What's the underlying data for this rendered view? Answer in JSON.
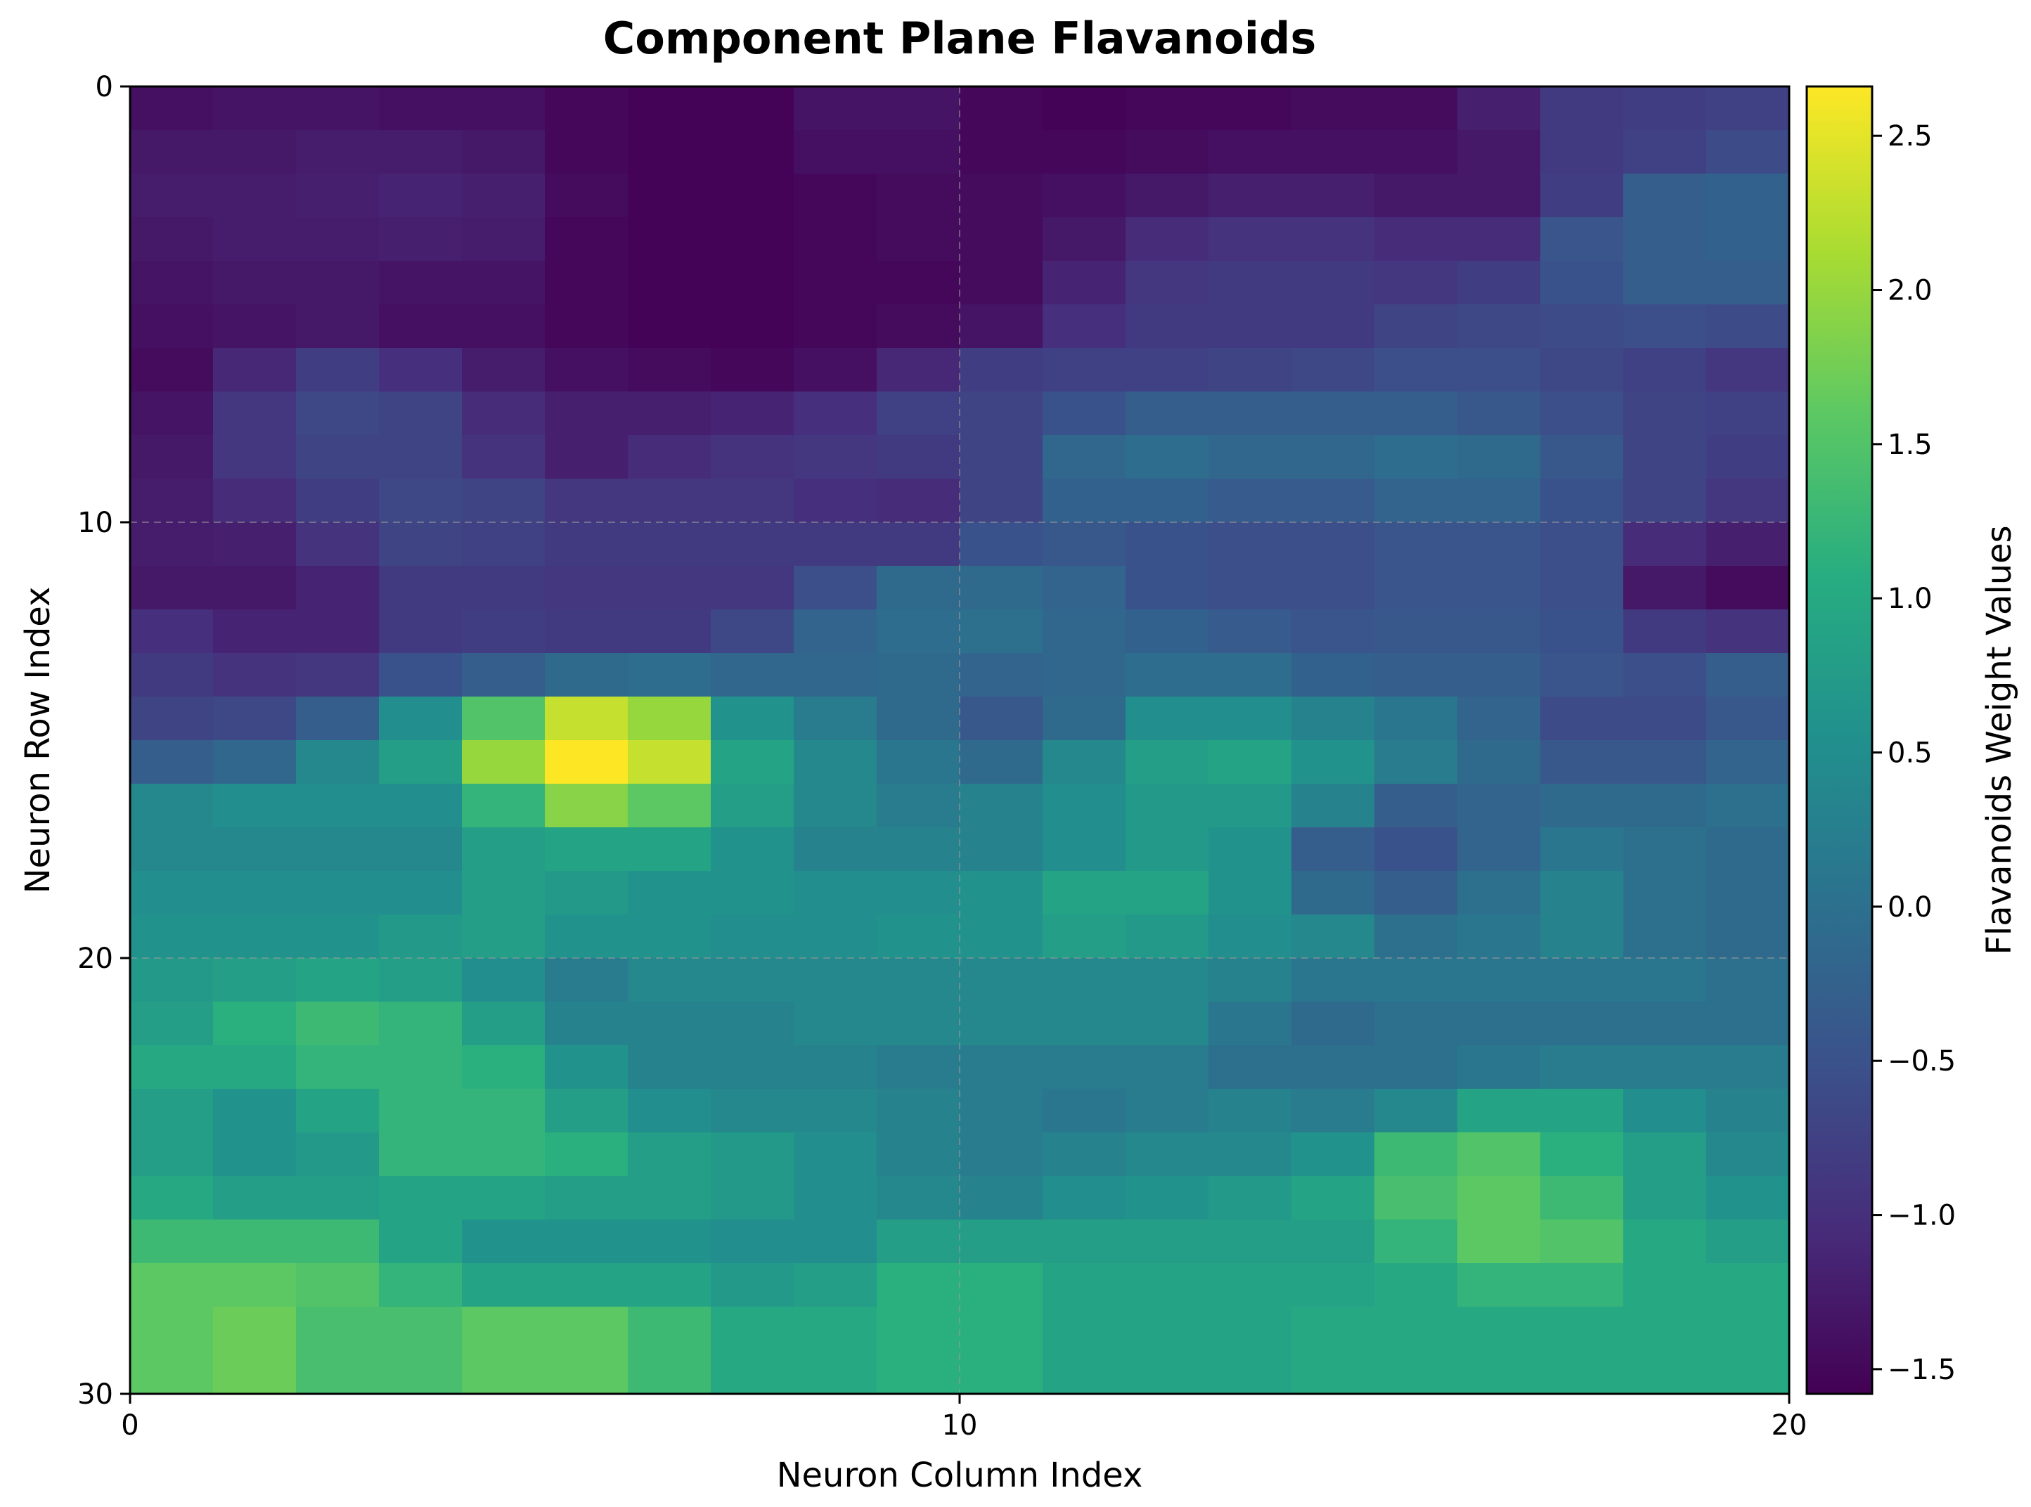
{
  "chart_data": {
    "type": "heatmap",
    "title": "Component Plane Flavanoids",
    "xlabel": "Neuron Column Index",
    "ylabel": "Neuron Row Index",
    "colorbar_label": "Flavanoids Weight Values",
    "colormap": "viridis",
    "xlim": [
      0,
      20
    ],
    "ylim": [
      30,
      0
    ],
    "xticks": [
      "0",
      "10",
      "20"
    ],
    "yticks": [
      "0",
      "10",
      "20",
      "30"
    ],
    "color_range": [
      -1.58,
      2.66
    ],
    "colorbar_ticks": [
      "2.5",
      "2.0",
      "1.5",
      "1.0",
      "0.5",
      "0.0",
      "−0.5",
      "−1.0",
      "−1.5"
    ],
    "colorbar_tick_values": [
      2.5,
      2.0,
      1.5,
      1.0,
      0.5,
      0.0,
      -0.5,
      -1.0,
      -1.5
    ],
    "grid": true,
    "rows": 30,
    "cols": 20,
    "values": [
      [
        -1.4,
        -1.35,
        -1.35,
        -1.4,
        -1.4,
        -1.5,
        -1.55,
        -1.55,
        -1.35,
        -1.35,
        -1.5,
        -1.55,
        -1.5,
        -1.5,
        -1.45,
        -1.45,
        -1.2,
        -0.85,
        -0.8,
        -0.75
      ],
      [
        -1.3,
        -1.3,
        -1.25,
        -1.25,
        -1.3,
        -1.5,
        -1.55,
        -1.55,
        -1.4,
        -1.4,
        -1.5,
        -1.5,
        -1.45,
        -1.4,
        -1.4,
        -1.4,
        -1.3,
        -0.85,
        -0.75,
        -0.6
      ],
      [
        -1.25,
        -1.25,
        -1.2,
        -1.15,
        -1.2,
        -1.45,
        -1.55,
        -1.55,
        -1.5,
        -1.45,
        -1.45,
        -1.4,
        -1.3,
        -1.2,
        -1.2,
        -1.3,
        -1.3,
        -0.8,
        -0.3,
        -0.25
      ],
      [
        -1.3,
        -1.25,
        -1.25,
        -1.2,
        -1.25,
        -1.5,
        -1.55,
        -1.55,
        -1.5,
        -1.45,
        -1.45,
        -1.3,
        -1.05,
        -0.95,
        -0.95,
        -1.05,
        -1.05,
        -0.45,
        -0.3,
        -0.25
      ],
      [
        -1.35,
        -1.3,
        -1.3,
        -1.35,
        -1.35,
        -1.5,
        -1.55,
        -1.55,
        -1.5,
        -1.5,
        -1.45,
        -1.15,
        -0.9,
        -0.85,
        -0.85,
        -0.9,
        -0.8,
        -0.5,
        -0.3,
        -0.3
      ],
      [
        -1.4,
        -1.35,
        -1.3,
        -1.4,
        -1.4,
        -1.5,
        -1.55,
        -1.55,
        -1.5,
        -1.45,
        -1.35,
        -1.0,
        -0.85,
        -0.85,
        -0.85,
        -0.7,
        -0.65,
        -0.6,
        -0.55,
        -0.6
      ],
      [
        -1.45,
        -1.1,
        -0.8,
        -1.0,
        -1.25,
        -1.4,
        -1.45,
        -1.5,
        -1.4,
        -1.1,
        -0.8,
        -0.75,
        -0.75,
        -0.7,
        -0.65,
        -0.55,
        -0.55,
        -0.65,
        -0.75,
        -0.9
      ],
      [
        -1.35,
        -0.9,
        -0.65,
        -0.7,
        -1.05,
        -1.2,
        -1.2,
        -1.15,
        -1.0,
        -0.75,
        -0.7,
        -0.5,
        -0.3,
        -0.3,
        -0.3,
        -0.3,
        -0.4,
        -0.55,
        -0.7,
        -0.75
      ],
      [
        -1.3,
        -0.9,
        -0.7,
        -0.7,
        -0.95,
        -1.2,
        -1.05,
        -0.95,
        -0.9,
        -0.85,
        -0.7,
        -0.15,
        -0.05,
        -0.15,
        -0.15,
        -0.05,
        -0.1,
        -0.4,
        -0.7,
        -0.8
      ],
      [
        -1.25,
        -1.05,
        -0.8,
        -0.65,
        -0.7,
        -0.9,
        -0.9,
        -0.9,
        -1.0,
        -1.05,
        -0.7,
        -0.25,
        -0.25,
        -0.35,
        -0.35,
        -0.2,
        -0.2,
        -0.5,
        -0.7,
        -0.9
      ],
      [
        -1.25,
        -1.2,
        -0.95,
        -0.7,
        -0.75,
        -0.85,
        -0.85,
        -0.85,
        -0.85,
        -0.85,
        -0.5,
        -0.4,
        -0.5,
        -0.55,
        -0.55,
        -0.45,
        -0.45,
        -0.55,
        -1.05,
        -1.2
      ],
      [
        -1.3,
        -1.3,
        -1.15,
        -0.85,
        -0.85,
        -0.9,
        -0.9,
        -0.9,
        -0.55,
        -0.1,
        -0.1,
        -0.2,
        -0.5,
        -0.55,
        -0.55,
        -0.45,
        -0.45,
        -0.55,
        -1.3,
        -1.45
      ],
      [
        -1.0,
        -1.15,
        -1.15,
        -0.85,
        -0.8,
        -0.85,
        -0.85,
        -0.65,
        -0.2,
        -0.05,
        0.0,
        -0.15,
        -0.25,
        -0.35,
        -0.45,
        -0.4,
        -0.4,
        -0.5,
        -0.85,
        -0.95
      ],
      [
        -0.85,
        -0.95,
        -0.9,
        -0.5,
        -0.3,
        -0.1,
        -0.05,
        -0.15,
        -0.15,
        -0.1,
        -0.2,
        -0.15,
        -0.05,
        -0.05,
        -0.25,
        -0.3,
        -0.3,
        -0.45,
        -0.55,
        -0.3
      ],
      [
        -0.7,
        -0.65,
        -0.3,
        0.5,
        1.5,
        2.3,
        2.0,
        0.6,
        0.2,
        -0.1,
        -0.4,
        -0.1,
        0.5,
        0.5,
        0.3,
        0.1,
        -0.2,
        -0.6,
        -0.6,
        -0.4
      ],
      [
        -0.3,
        -0.15,
        0.4,
        0.8,
        2.0,
        2.66,
        2.3,
        0.9,
        0.4,
        0.1,
        -0.1,
        0.4,
        0.8,
        0.9,
        0.6,
        0.2,
        -0.1,
        -0.4,
        -0.4,
        -0.2
      ],
      [
        0.4,
        0.5,
        0.5,
        0.5,
        1.2,
        1.9,
        1.6,
        0.8,
        0.4,
        0.2,
        0.3,
        0.5,
        0.7,
        0.7,
        0.3,
        -0.3,
        -0.2,
        -0.1,
        -0.1,
        0.0
      ],
      [
        0.4,
        0.4,
        0.4,
        0.4,
        0.8,
        0.9,
        0.9,
        0.6,
        0.3,
        0.3,
        0.3,
        0.5,
        0.7,
        0.6,
        -0.3,
        -0.5,
        -0.2,
        0.1,
        0.0,
        -0.1
      ],
      [
        0.5,
        0.5,
        0.5,
        0.5,
        0.8,
        0.7,
        0.6,
        0.6,
        0.5,
        0.5,
        0.6,
        0.9,
        0.9,
        0.6,
        -0.1,
        -0.3,
        0.0,
        0.3,
        0.0,
        -0.1
      ],
      [
        0.6,
        0.6,
        0.6,
        0.7,
        0.8,
        0.6,
        0.6,
        0.5,
        0.5,
        0.6,
        0.6,
        0.8,
        0.7,
        0.5,
        0.4,
        0.0,
        0.1,
        0.3,
        0.0,
        -0.1
      ],
      [
        0.7,
        0.8,
        0.9,
        0.8,
        0.5,
        0.2,
        0.4,
        0.4,
        0.4,
        0.4,
        0.4,
        0.4,
        0.4,
        0.3,
        0.1,
        0.1,
        0.1,
        0.1,
        0.1,
        0.0
      ],
      [
        0.8,
        1.1,
        1.3,
        1.2,
        0.8,
        0.3,
        0.3,
        0.3,
        0.4,
        0.4,
        0.4,
        0.4,
        0.4,
        0.1,
        -0.1,
        0.0,
        0.0,
        0.0,
        0.0,
        0.0
      ],
      [
        1.0,
        1.0,
        1.2,
        1.2,
        1.1,
        0.6,
        0.3,
        0.3,
        0.3,
        0.2,
        0.2,
        0.2,
        0.2,
        0.0,
        0.0,
        0.0,
        0.1,
        0.2,
        0.2,
        0.2
      ],
      [
        0.8,
        0.6,
        0.9,
        1.2,
        1.2,
        0.8,
        0.5,
        0.4,
        0.4,
        0.3,
        0.2,
        0.1,
        0.2,
        0.3,
        0.2,
        0.4,
        0.9,
        0.9,
        0.5,
        0.3
      ],
      [
        0.8,
        0.6,
        0.7,
        1.2,
        1.2,
        1.1,
        0.8,
        0.7,
        0.5,
        0.3,
        0.2,
        0.3,
        0.4,
        0.4,
        0.6,
        1.3,
        1.5,
        1.1,
        0.8,
        0.4
      ],
      [
        1.0,
        0.8,
        0.8,
        0.9,
        0.9,
        0.8,
        0.8,
        0.7,
        0.5,
        0.4,
        0.3,
        0.5,
        0.6,
        0.7,
        0.9,
        1.4,
        1.6,
        1.3,
        0.8,
        0.6
      ],
      [
        1.3,
        1.3,
        1.3,
        0.9,
        0.6,
        0.6,
        0.6,
        0.5,
        0.5,
        0.8,
        0.8,
        0.8,
        0.8,
        0.8,
        0.8,
        1.2,
        1.6,
        1.5,
        1.0,
        0.8
      ],
      [
        1.6,
        1.6,
        1.5,
        1.2,
        0.9,
        0.9,
        0.9,
        0.7,
        0.8,
        1.1,
        1.1,
        0.9,
        0.9,
        0.9,
        0.9,
        1.0,
        1.2,
        1.2,
        1.0,
        1.0
      ],
      [
        1.6,
        1.7,
        1.4,
        1.4,
        1.6,
        1.6,
        1.3,
        1.0,
        1.0,
        1.1,
        1.1,
        0.9,
        0.9,
        0.9,
        1.0,
        1.0,
        1.0,
        1.0,
        1.0,
        1.0
      ],
      [
        1.6,
        1.7,
        1.4,
        1.4,
        1.6,
        1.6,
        1.3,
        1.0,
        1.0,
        1.1,
        1.1,
        0.9,
        0.9,
        0.9,
        1.0,
        1.0,
        1.0,
        1.0,
        1.0,
        1.0
      ]
    ]
  }
}
